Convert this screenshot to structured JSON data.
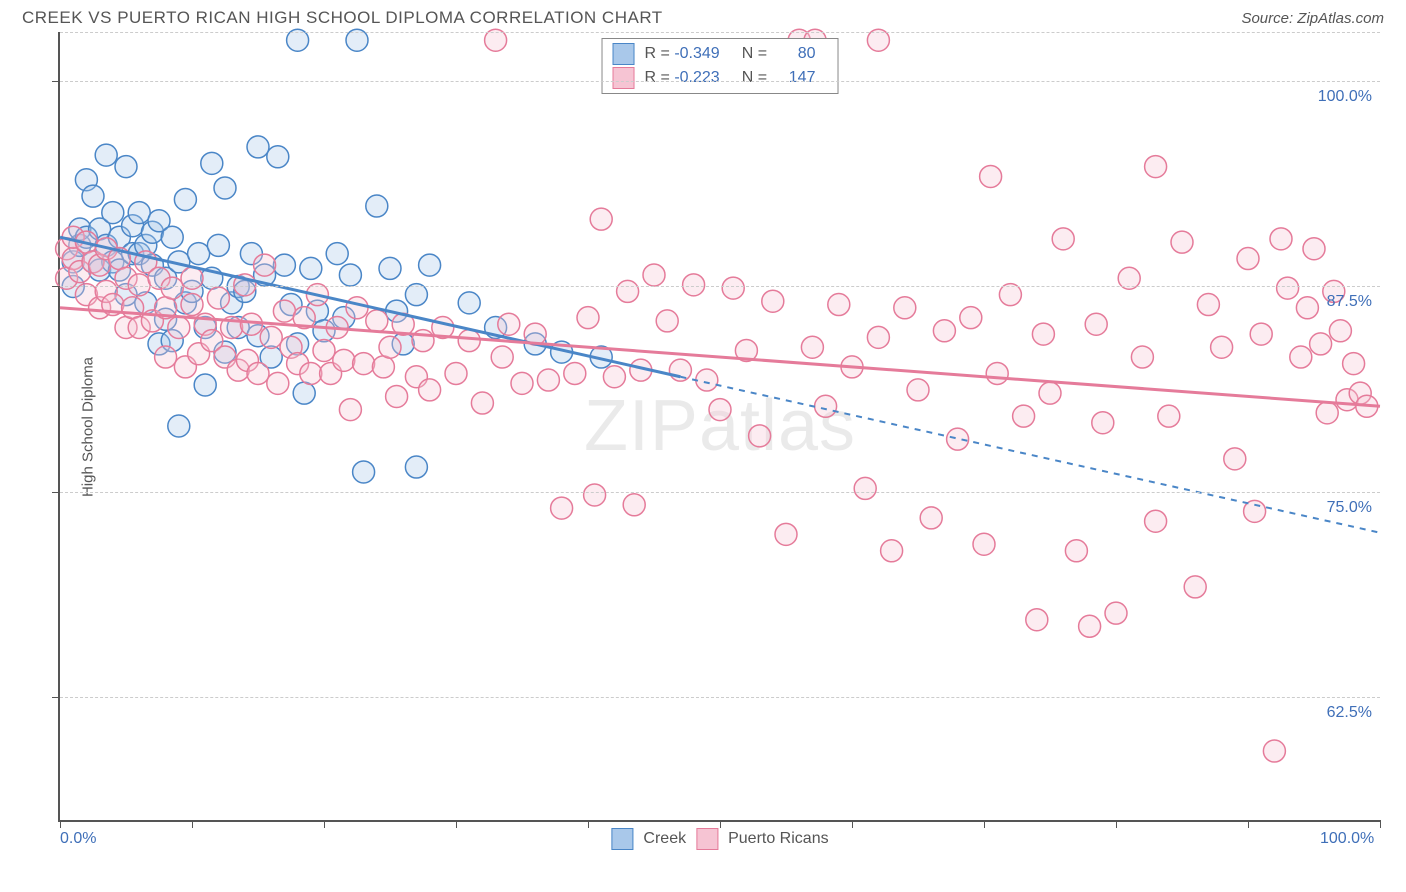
{
  "header": {
    "title": "CREEK VS PUERTO RICAN HIGH SCHOOL DIPLOMA CORRELATION CHART",
    "source": "Source: ZipAtlas.com"
  },
  "watermark": {
    "zip": "ZIP",
    "atlas": "atlas"
  },
  "yaxis": {
    "label": "High School Diploma"
  },
  "chart": {
    "type": "scatter",
    "xlim": [
      0,
      100
    ],
    "ylim": [
      55,
      103
    ],
    "background_color": "#ffffff",
    "grid_color": "#cccccc",
    "grid_dashed": true,
    "axis_color": "#555555",
    "label_text_color": "#555555",
    "tick_number_color": "#3f6fb8",
    "marker_radius": 11,
    "marker_stroke_width": 1.5,
    "marker_fill_opacity": 0.32,
    "xticks_at": [
      0,
      10,
      20,
      30,
      40,
      50,
      60,
      70,
      80,
      90,
      100
    ],
    "xlabels": {
      "0": "0.0%",
      "100": "100.0%"
    },
    "yticks": [
      {
        "y": 62.5,
        "label": "62.5%"
      },
      {
        "y": 75.0,
        "label": "75.0%"
      },
      {
        "y": 87.5,
        "label": "87.5%"
      },
      {
        "y": 100.0,
        "label": "100.0%"
      },
      {
        "y": 103.0,
        "label": "",
        "grid_only": true
      }
    ],
    "series": [
      {
        "key": "creek",
        "label": "Creek",
        "color_stroke": "#4a86c7",
        "color_fill": "#a9c8ea",
        "R": "-0.349",
        "N": "80",
        "trend": {
          "solid": {
            "x1": 0,
            "y1": 90.5,
            "x2": 47,
            "y2": 82.0,
            "width": 3
          },
          "dashed": {
            "x1": 47,
            "y1": 82.0,
            "x2": 100,
            "y2": 72.5,
            "width": 2,
            "dash": "6 6"
          }
        },
        "points": [
          [
            1,
            87.5
          ],
          [
            1,
            89
          ],
          [
            1.5,
            90
          ],
          [
            1.5,
            91
          ],
          [
            2,
            90.5
          ],
          [
            2,
            94
          ],
          [
            2.5,
            89
          ],
          [
            2.5,
            93
          ],
          [
            3,
            88.5
          ],
          [
            3,
            91
          ],
          [
            3.5,
            90
          ],
          [
            3.5,
            95.5
          ],
          [
            4,
            89
          ],
          [
            4,
            92
          ],
          [
            4.5,
            88.5
          ],
          [
            4.5,
            90.5
          ],
          [
            5,
            87
          ],
          [
            5,
            94.8
          ],
          [
            5.5,
            89.5
          ],
          [
            5.5,
            91.2
          ],
          [
            6,
            89.5
          ],
          [
            6,
            92
          ],
          [
            6.5,
            90
          ],
          [
            6.5,
            86.5
          ],
          [
            7,
            88.8
          ],
          [
            7,
            90.8
          ],
          [
            7.5,
            84
          ],
          [
            7.5,
            91.5
          ],
          [
            8,
            85.5
          ],
          [
            8,
            88
          ],
          [
            8.5,
            90.5
          ],
          [
            8.5,
            84.2
          ],
          [
            9,
            89
          ],
          [
            9,
            79
          ],
          [
            9.5,
            86.5
          ],
          [
            9.5,
            92.8
          ],
          [
            10,
            87.2
          ],
          [
            10.5,
            89.5
          ],
          [
            11,
            81.5
          ],
          [
            11,
            85
          ],
          [
            11.5,
            95
          ],
          [
            11.5,
            88
          ],
          [
            12,
            90
          ],
          [
            12.5,
            83.5
          ],
          [
            12.5,
            93.5
          ],
          [
            13,
            86.5
          ],
          [
            13.5,
            85
          ],
          [
            13.5,
            87.5
          ],
          [
            14,
            87.2
          ],
          [
            14.5,
            89.5
          ],
          [
            15,
            96
          ],
          [
            15,
            84.5
          ],
          [
            15.5,
            88.2
          ],
          [
            16,
            83.2
          ],
          [
            16.5,
            95.4
          ],
          [
            17,
            88.8
          ],
          [
            17.5,
            86.4
          ],
          [
            18,
            102.5
          ],
          [
            18,
            84
          ],
          [
            18.5,
            81
          ],
          [
            19,
            88.6
          ],
          [
            19.5,
            86
          ],
          [
            20,
            84.8
          ],
          [
            21,
            89.5
          ],
          [
            21.5,
            85.6
          ],
          [
            22,
            88.2
          ],
          [
            22.5,
            102.5
          ],
          [
            23,
            76.2
          ],
          [
            24,
            92.4
          ],
          [
            25,
            88.6
          ],
          [
            25.5,
            86
          ],
          [
            26,
            84
          ],
          [
            27,
            87
          ],
          [
            27,
            76.5
          ],
          [
            28,
            88.8
          ],
          [
            31,
            86.5
          ],
          [
            33,
            85
          ],
          [
            36,
            84
          ],
          [
            38,
            83.5
          ],
          [
            41,
            83.2
          ]
        ]
      },
      {
        "key": "pr",
        "label": "Puerto Ricans",
        "color_stroke": "#e57b9a",
        "color_fill": "#f6c4d3",
        "R": "-0.223",
        "N": "147",
        "trend": {
          "solid": {
            "x1": 0,
            "y1": 86.2,
            "x2": 100,
            "y2": 80.2,
            "width": 3
          }
        },
        "points": [
          [
            0.5,
            89.8
          ],
          [
            0.5,
            88
          ],
          [
            1,
            89.2
          ],
          [
            1,
            90.5
          ],
          [
            1.5,
            88.4
          ],
          [
            2,
            87
          ],
          [
            2,
            90.2
          ],
          [
            2.5,
            89
          ],
          [
            3,
            86.2
          ],
          [
            3,
            88.8
          ],
          [
            3.5,
            89.8
          ],
          [
            3.5,
            87.2
          ],
          [
            4,
            86.4
          ],
          [
            4.5,
            89.2
          ],
          [
            5,
            85
          ],
          [
            5,
            88
          ],
          [
            5.5,
            86.2
          ],
          [
            6,
            87.6
          ],
          [
            6,
            85
          ],
          [
            6.5,
            89
          ],
          [
            7,
            85.4
          ],
          [
            7.5,
            88
          ],
          [
            8,
            83.2
          ],
          [
            8,
            86.2
          ],
          [
            8.5,
            87.4
          ],
          [
            9,
            85
          ],
          [
            9.5,
            82.6
          ],
          [
            10,
            88
          ],
          [
            10,
            86.4
          ],
          [
            10.5,
            83.4
          ],
          [
            11,
            85.2
          ],
          [
            11.5,
            84.2
          ],
          [
            12,
            86.8
          ],
          [
            12.5,
            83.2
          ],
          [
            13,
            85
          ],
          [
            13.5,
            82.4
          ],
          [
            14,
            87.6
          ],
          [
            14.2,
            83
          ],
          [
            14.5,
            85.2
          ],
          [
            15,
            82.2
          ],
          [
            15.5,
            88.8
          ],
          [
            16,
            84.4
          ],
          [
            16.5,
            81.6
          ],
          [
            17,
            86
          ],
          [
            17.5,
            83.8
          ],
          [
            18,
            82.8
          ],
          [
            18.5,
            85.6
          ],
          [
            19,
            82.2
          ],
          [
            19.5,
            87
          ],
          [
            20,
            83.6
          ],
          [
            20.5,
            82.2
          ],
          [
            21,
            85
          ],
          [
            21.5,
            83
          ],
          [
            22,
            80
          ],
          [
            22.5,
            86.2
          ],
          [
            23,
            82.8
          ],
          [
            24,
            85.4
          ],
          [
            24.5,
            82.6
          ],
          [
            25,
            83.8
          ],
          [
            25.5,
            80.8
          ],
          [
            26,
            85.2
          ],
          [
            27,
            82
          ],
          [
            27.5,
            84.2
          ],
          [
            28,
            81.2
          ],
          [
            29,
            85
          ],
          [
            30,
            82.2
          ],
          [
            31,
            84.2
          ],
          [
            32,
            80.4
          ],
          [
            33,
            102.5
          ],
          [
            33.5,
            83.2
          ],
          [
            34,
            85.2
          ],
          [
            35,
            81.6
          ],
          [
            36,
            84.6
          ],
          [
            37,
            81.8
          ],
          [
            38,
            74
          ],
          [
            39,
            82.2
          ],
          [
            40,
            85.6
          ],
          [
            40.5,
            74.8
          ],
          [
            41,
            91.6
          ],
          [
            42,
            82
          ],
          [
            43,
            87.2
          ],
          [
            43.5,
            74.2
          ],
          [
            44,
            82.4
          ],
          [
            45,
            88.2
          ],
          [
            46,
            85.4
          ],
          [
            47,
            82.4
          ],
          [
            48,
            87.6
          ],
          [
            49,
            81.8
          ],
          [
            50,
            80
          ],
          [
            51,
            87.4
          ],
          [
            52,
            83.6
          ],
          [
            53,
            78.4
          ],
          [
            54,
            86.6
          ],
          [
            55,
            72.4
          ],
          [
            56,
            102.5
          ],
          [
            57,
            83.8
          ],
          [
            57.2,
            102.5
          ],
          [
            58,
            80.2
          ],
          [
            59,
            86.4
          ],
          [
            60,
            82.6
          ],
          [
            61,
            75.2
          ],
          [
            62,
            84.4
          ],
          [
            62,
            102.5
          ],
          [
            63,
            71.4
          ],
          [
            64,
            86.2
          ],
          [
            65,
            81.2
          ],
          [
            66,
            73.4
          ],
          [
            67,
            84.8
          ],
          [
            68,
            78.2
          ],
          [
            69,
            85.6
          ],
          [
            70,
            71.8
          ],
          [
            70.5,
            94.2
          ],
          [
            71,
            82.2
          ],
          [
            72,
            87
          ],
          [
            73,
            79.6
          ],
          [
            74,
            67.2
          ],
          [
            74.5,
            84.6
          ],
          [
            75,
            81
          ],
          [
            76,
            90.4
          ],
          [
            77,
            71.4
          ],
          [
            78,
            66.8
          ],
          [
            78.5,
            85.2
          ],
          [
            79,
            79.2
          ],
          [
            80,
            67.6
          ],
          [
            81,
            88
          ],
          [
            82,
            83.2
          ],
          [
            83,
            94.8
          ],
          [
            83,
            73.2
          ],
          [
            84,
            79.6
          ],
          [
            85,
            90.2
          ],
          [
            86,
            69.2
          ],
          [
            87,
            86.4
          ],
          [
            88,
            83.8
          ],
          [
            89,
            77
          ],
          [
            90,
            89.2
          ],
          [
            90.5,
            73.8
          ],
          [
            91,
            84.6
          ],
          [
            92,
            59.2
          ],
          [
            92.5,
            90.4
          ],
          [
            93,
            87.4
          ],
          [
            94,
            83.2
          ],
          [
            94.5,
            86.2
          ],
          [
            95,
            89.8
          ],
          [
            95.5,
            84
          ],
          [
            96,
            79.8
          ],
          [
            96.5,
            87.2
          ],
          [
            97,
            84.8
          ],
          [
            97.5,
            80.6
          ],
          [
            98,
            82.8
          ],
          [
            98.5,
            81
          ],
          [
            99,
            80.2
          ]
        ]
      }
    ]
  },
  "legend_bottom": [
    {
      "label": "Creek",
      "stroke": "#4a86c7",
      "fill": "#a9c8ea"
    },
    {
      "label": "Puerto Ricans",
      "stroke": "#e57b9a",
      "fill": "#f6c4d3"
    }
  ]
}
